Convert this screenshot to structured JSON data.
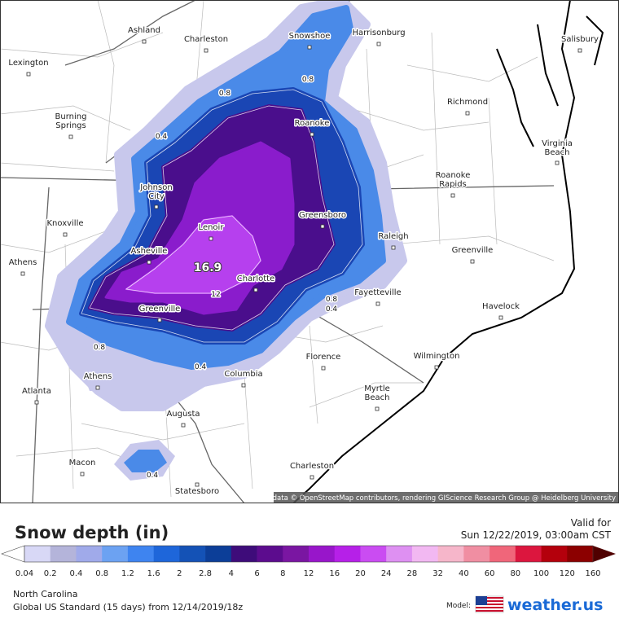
{
  "map": {
    "cities": [
      {
        "lines": [
          "Ashland"
        ]
      },
      {
        "lines": [
          "Charleston"
        ]
      },
      {
        "lines": [
          "Snowshoe"
        ]
      },
      {
        "lines": [
          "Harrisonburg"
        ]
      },
      {
        "lines": [
          "Salisbury"
        ]
      },
      {
        "lines": [
          "Lexington"
        ]
      },
      {
        "lines": [
          "Richmond"
        ]
      },
      {
        "lines": [
          "Burning",
          "Springs"
        ]
      },
      {
        "lines": [
          "Roanoke"
        ]
      },
      {
        "lines": [
          "Virginia",
          "Beach"
        ]
      },
      {
        "lines": [
          "Johnson",
          "City"
        ]
      },
      {
        "lines": [
          "Roanoke",
          "Rapids"
        ]
      },
      {
        "lines": [
          "Greensboro"
        ]
      },
      {
        "lines": [
          "Knoxville"
        ]
      },
      {
        "lines": [
          "Lenoir"
        ]
      },
      {
        "lines": [
          "Raleigh"
        ]
      },
      {
        "lines": [
          "Asheville"
        ]
      },
      {
        "lines": [
          "Athens"
        ]
      },
      {
        "lines": [
          "Greenville"
        ]
      },
      {
        "lines": [
          "Charlotte"
        ]
      },
      {
        "lines": [
          "Fayetteville"
        ]
      },
      {
        "lines": [
          "Havelock"
        ]
      },
      {
        "lines": [
          "Greenville"
        ]
      },
      {
        "lines": [
          "Wilmington"
        ]
      },
      {
        "lines": [
          "Florence"
        ]
      },
      {
        "lines": [
          "Athens"
        ]
      },
      {
        "lines": [
          "Columbia"
        ]
      },
      {
        "lines": [
          "Atlanta"
        ]
      },
      {
        "lines": [
          "Myrtle",
          "Beach"
        ]
      },
      {
        "lines": [
          "Augusta"
        ]
      },
      {
        "lines": [
          "Macon"
        ]
      },
      {
        "lines": [
          "Charleston"
        ]
      },
      {
        "lines": [
          "Statesboro"
        ]
      }
    ],
    "contour_labels": [
      "0.8",
      "0.8",
      "0.4",
      "16.9",
      "12",
      "0.8",
      "0.4",
      "0.8",
      "0.4",
      "0.4"
    ],
    "attribution": "Map data © OpenStreetMap contributors, rendering GIScience Research Group @ Heidelberg University"
  },
  "legend": {
    "title": "Snow depth (in)",
    "ticks": [
      "0.04",
      "0.2",
      "0.4",
      "0.8",
      "1.2",
      "1.6",
      "2",
      "2.8",
      "4",
      "6",
      "8",
      "12",
      "16",
      "20",
      "24",
      "28",
      "32",
      "40",
      "60",
      "80",
      "100",
      "120",
      "160"
    ],
    "colors": [
      "#d8d8f6",
      "#b4b4da",
      "#a0aaea",
      "#6ca2f2",
      "#3e84f0",
      "#1e66da",
      "#1452b6",
      "#0c3e98",
      "#3e0c7a",
      "#5c0c8e",
      "#7a16a2",
      "#9816ca",
      "#b620e8",
      "#ca4cf2",
      "#de90f2",
      "#f2b8f2",
      "#f6b6ca",
      "#f08ea2",
      "#f0667a",
      "#dc163e",
      "#b4000c",
      "#8c0000"
    ],
    "low_color": "#ffffff",
    "high_color": "#500000"
  },
  "footer": {
    "valid_label": "Valid for",
    "valid_time": "Sun 12/22/2019, 03:00am CST",
    "region": "North Carolina",
    "model_run": "Global US Standard (15 days) from  12/14/2019/18z",
    "model_label": "Model:",
    "logo": "weather.us"
  }
}
